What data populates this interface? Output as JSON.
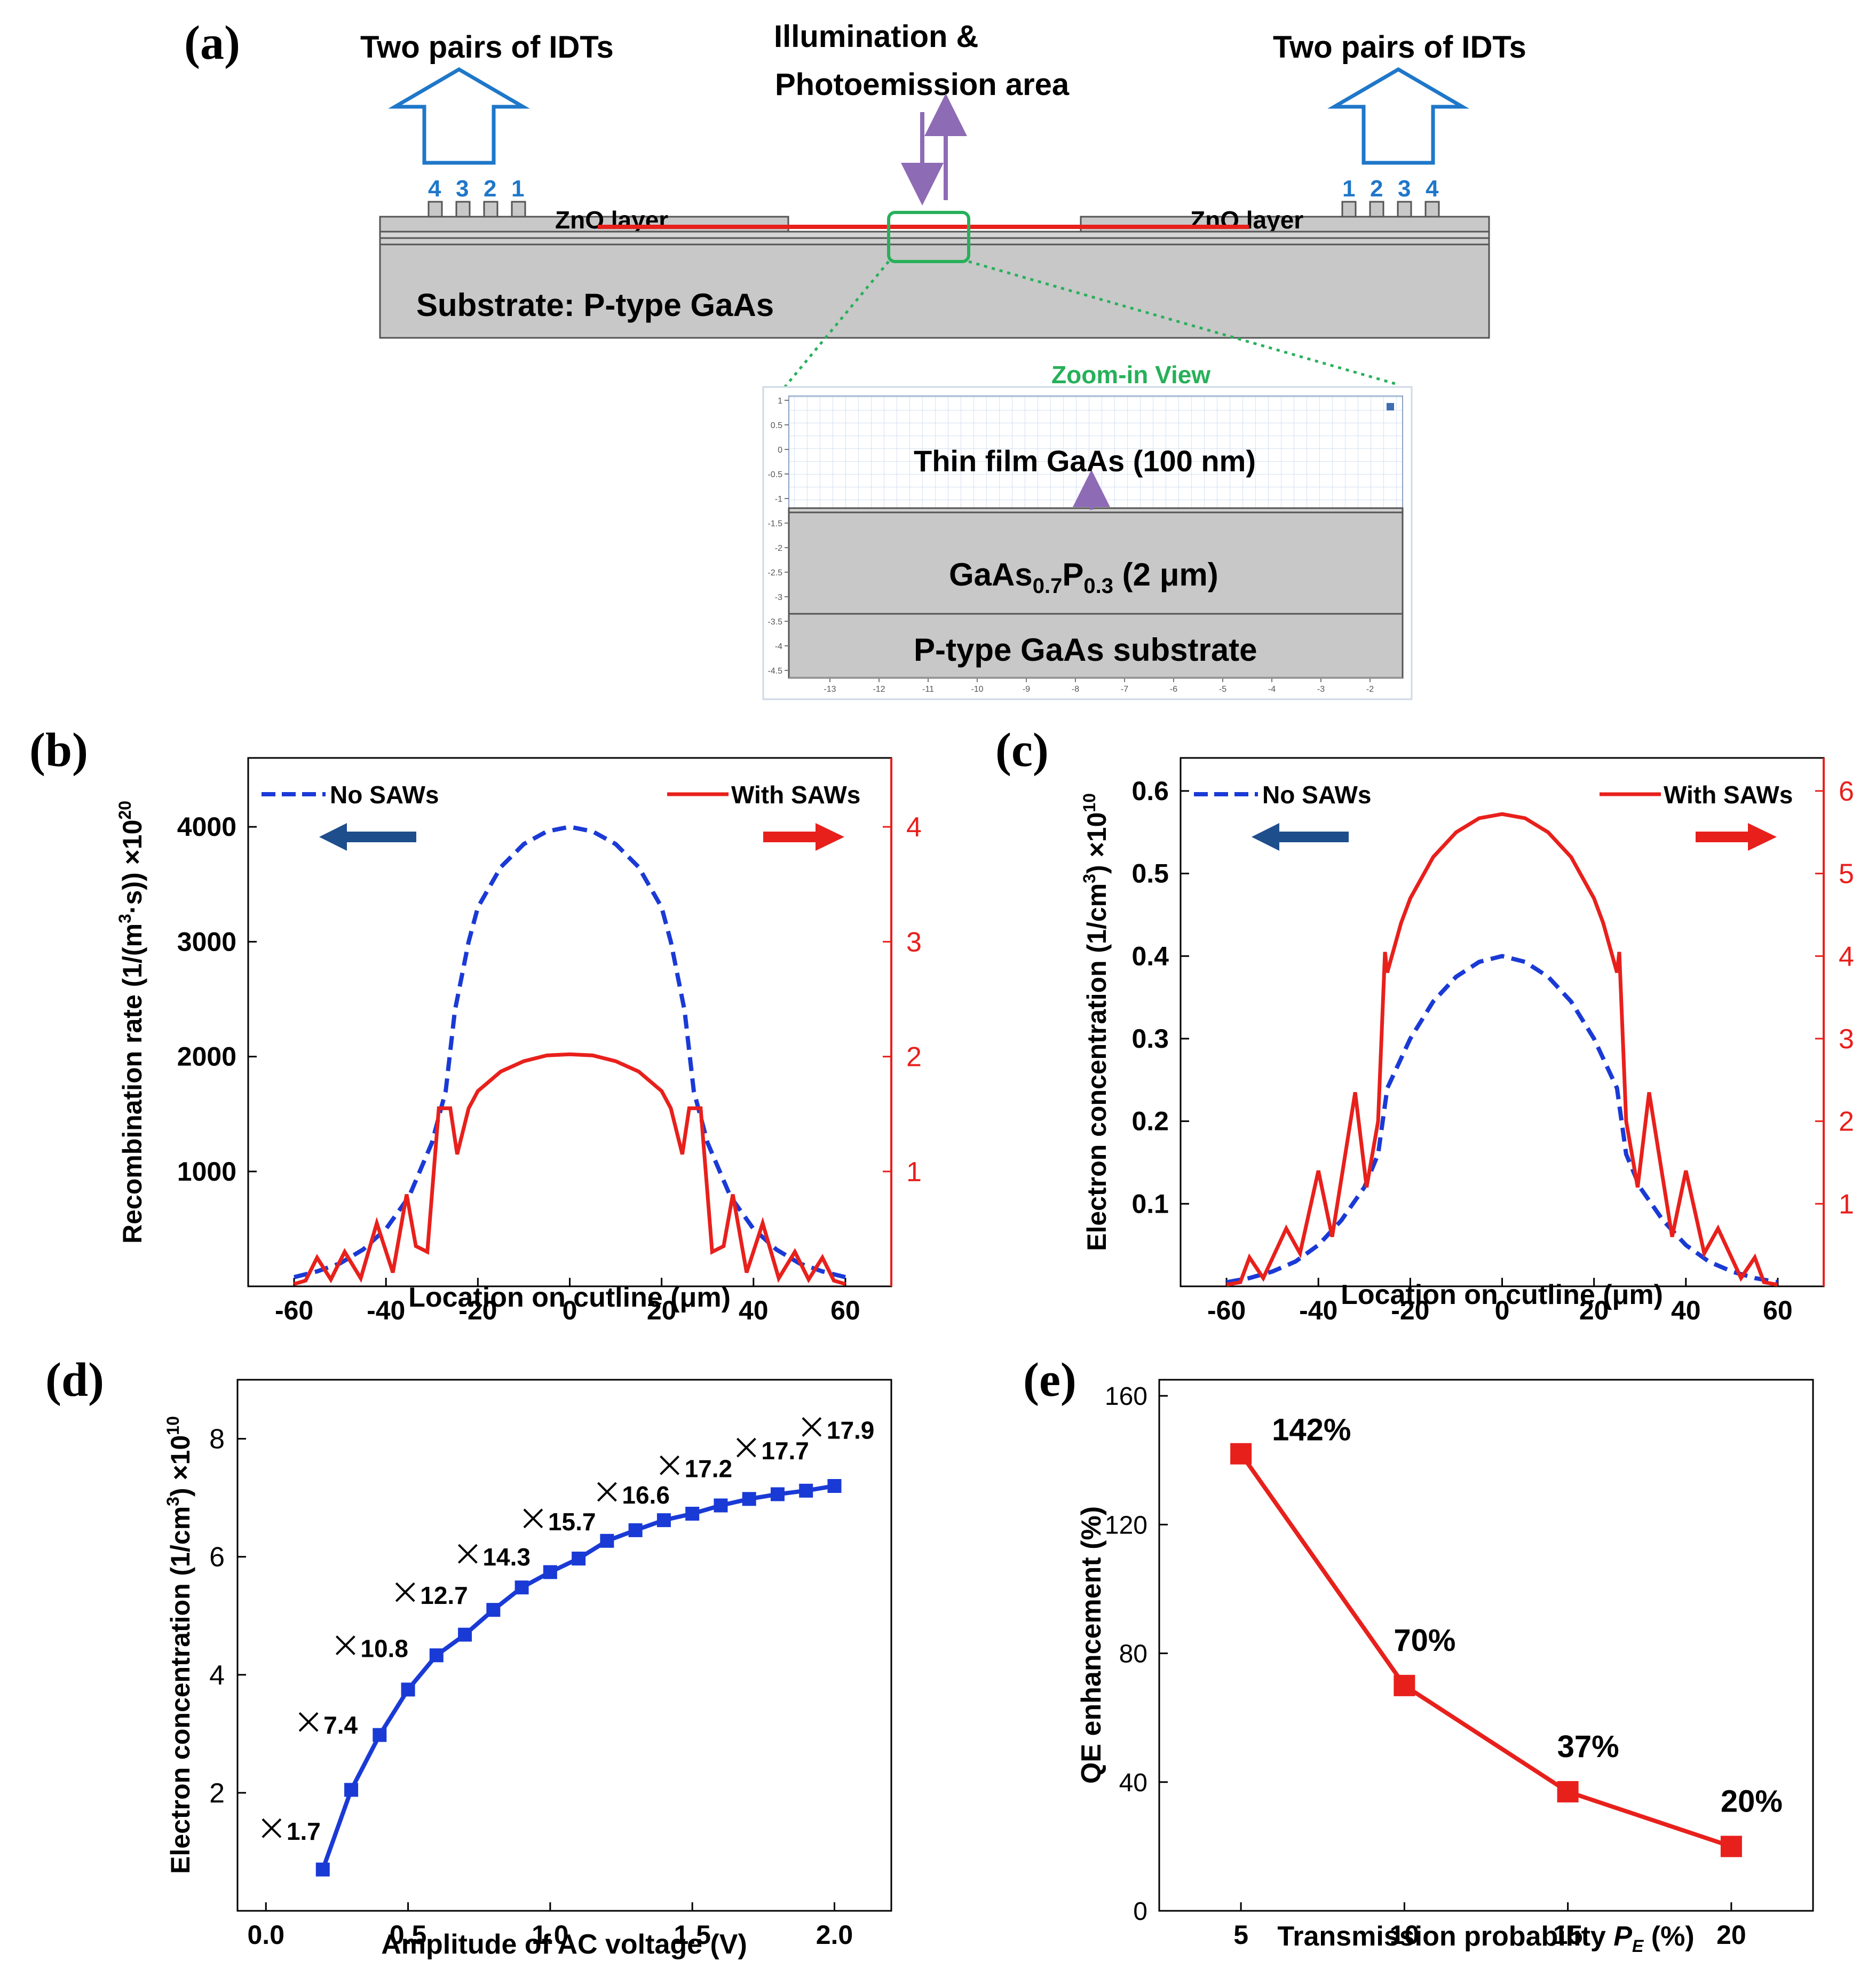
{
  "panel_a": {
    "label": "(a)",
    "idt_left": "Two pairs of IDTs",
    "idt_right": "Two pairs of IDTs",
    "illum_line1": "Illumination &",
    "illum_line2": "Photoemission area",
    "idt_nums_left": [
      "4",
      "3",
      "2",
      "1"
    ],
    "idt_nums_right": [
      "1",
      "2",
      "3",
      "4"
    ],
    "zno_left": "ZnO layer",
    "zno_right": "ZnO layer",
    "substrate": "Substrate: P-type GaAs",
    "zoom_title": "Zoom-in View",
    "layer1": "Thin film GaAs (100 nm)",
    "layer2_main": "GaAs",
    "layer2_sub1": "0.7",
    "layer2_mid": "P",
    "layer2_sub2": "0.3",
    "layer2_tail": " (2 μm)",
    "layer3": "P-type GaAs substrate",
    "zoom_yticks": [
      "1",
      "0.5",
      "0",
      "-0.5",
      "-1",
      "-1.5",
      "-2",
      "-2.5",
      "-3",
      "-3.5",
      "-4",
      "-4.5"
    ],
    "zoom_xticks": [
      "-13",
      "-12",
      "-11",
      "-10",
      "-9",
      "-8",
      "-7",
      "-6",
      "-5",
      "-4",
      "-3",
      "-2"
    ],
    "colors": {
      "idt_blue": "#1f77c9",
      "red_line": "#e8201c",
      "green": "#27b05a",
      "purple": "#8e6bb5"
    }
  },
  "chart_data": [
    {
      "id": "b",
      "panel_label": "(b)",
      "type": "line",
      "xlabel": "Location on cutline (μm)",
      "ylabel": "Recombination rate (1/(m³·s)) ×10²⁰",
      "ylabel_parts": {
        "pre": "Recombination rate (1/(m",
        "sup": "3",
        "post": "·s)) ×10",
        "exp": "20"
      },
      "xlim": [
        -70,
        70
      ],
      "ylim_left": [
        0,
        4600
      ],
      "ylim_right": [
        0,
        4.6
      ],
      "xticks": [
        -60,
        -40,
        -20,
        0,
        20,
        40,
        60
      ],
      "yticks_left": [
        1000,
        2000,
        3000,
        4000
      ],
      "yticks_right": [
        1,
        2,
        3,
        4
      ],
      "legend_left": "No SAWs",
      "legend_right": "With SAWs",
      "series": [
        {
          "name": "No SAWs",
          "axis": "left",
          "style": "dashed",
          "color": "#1a3ad6",
          "x": [
            -60,
            -55,
            -50,
            -45,
            -40,
            -35,
            -30,
            -27,
            -25,
            -22,
            -20,
            -15,
            -10,
            -5,
            0,
            5,
            10,
            15,
            20,
            22,
            25,
            27,
            30,
            35,
            40,
            45,
            50,
            55,
            60
          ],
          "y": [
            80,
            130,
            200,
            320,
            500,
            780,
            1250,
            1700,
            2400,
            3000,
            3300,
            3650,
            3850,
            3960,
            4000,
            3960,
            3850,
            3650,
            3300,
            3000,
            2400,
            1700,
            1250,
            780,
            500,
            320,
            200,
            130,
            80
          ]
        },
        {
          "name": "With SAWs",
          "axis": "right",
          "style": "solid",
          "color": "#e8201c",
          "x": [
            -60,
            -57.5,
            -55,
            -52,
            -49,
            -45.5,
            -42,
            -38.5,
            -35.5,
            -33.5,
            -31,
            -28.5,
            -26,
            -24.5,
            -22,
            -20,
            -15,
            -10,
            -5,
            0,
            5,
            10,
            15,
            20,
            22,
            24.5,
            26,
            28.5,
            31,
            33.5,
            35.5,
            38.5,
            42,
            45.5,
            49,
            52,
            55,
            57.5,
            60
          ],
          "y": [
            0.02,
            0.05,
            0.25,
            0.06,
            0.3,
            0.07,
            0.55,
            0.12,
            0.8,
            0.35,
            0.3,
            1.55,
            1.55,
            1.15,
            1.55,
            1.7,
            1.87,
            1.96,
            2.01,
            2.02,
            2.01,
            1.96,
            1.87,
            1.7,
            1.55,
            1.15,
            1.55,
            1.55,
            0.3,
            0.35,
            0.8,
            0.12,
            0.55,
            0.07,
            0.3,
            0.06,
            0.25,
            0.05,
            0.02
          ]
        }
      ]
    },
    {
      "id": "c",
      "panel_label": "(c)",
      "type": "line",
      "xlabel": "Location on cutline (μm)",
      "ylabel": "Electron concentration (1/cm³) ×10¹⁰",
      "ylabel_parts": {
        "pre": "Electron concentration (1/cm",
        "sup": "3",
        "post": ") ×10",
        "exp": "10"
      },
      "xlim": [
        -70,
        70
      ],
      "ylim_left": [
        0,
        0.64
      ],
      "ylim_right": [
        0,
        6.4
      ],
      "xticks": [
        -60,
        -40,
        -20,
        0,
        20,
        40,
        60
      ],
      "yticks_left": [
        0.1,
        0.2,
        0.3,
        0.4,
        0.5,
        0.6
      ],
      "yticks_right": [
        1,
        2,
        3,
        4,
        5,
        6
      ],
      "legend_left": "No SAWs",
      "legend_right": "With SAWs",
      "series": [
        {
          "name": "No SAWs",
          "axis": "left",
          "style": "dashed",
          "color": "#1a3ad6",
          "x": [
            -60,
            -55,
            -50,
            -45,
            -40,
            -35,
            -30,
            -27,
            -25,
            -20,
            -15,
            -10,
            -5,
            0,
            5,
            10,
            15,
            20,
            25,
            27,
            30,
            35,
            40,
            45,
            50,
            55,
            60
          ],
          "y": [
            0.005,
            0.01,
            0.018,
            0.03,
            0.05,
            0.08,
            0.12,
            0.16,
            0.24,
            0.3,
            0.345,
            0.375,
            0.393,
            0.4,
            0.393,
            0.375,
            0.345,
            0.3,
            0.24,
            0.16,
            0.12,
            0.08,
            0.05,
            0.03,
            0.018,
            0.01,
            0.005
          ]
        },
        {
          "name": "With SAWs",
          "axis": "right",
          "style": "solid",
          "color": "#e8201c",
          "x": [
            -60,
            -57,
            -55,
            -52,
            -47,
            -44,
            -40,
            -37,
            -32,
            -29.5,
            -27,
            -25.5,
            -25,
            -22,
            -20,
            -15,
            -10,
            -5,
            0,
            5,
            10,
            15,
            20,
            22,
            25,
            25.5,
            27,
            29.5,
            32,
            37,
            40,
            44,
            47,
            52,
            55,
            57,
            60
          ],
          "y": [
            0.02,
            0.05,
            0.35,
            0.1,
            0.7,
            0.4,
            1.4,
            0.6,
            2.35,
            1.2,
            2.0,
            4.05,
            3.8,
            4.4,
            4.7,
            5.2,
            5.5,
            5.67,
            5.72,
            5.67,
            5.5,
            5.2,
            4.7,
            4.4,
            3.8,
            4.05,
            2.0,
            1.2,
            2.35,
            0.6,
            1.4,
            0.4,
            0.7,
            0.1,
            0.35,
            0.05,
            0.02
          ]
        }
      ]
    },
    {
      "id": "d",
      "panel_label": "(d)",
      "type": "line",
      "xlabel": "Amplitude of AC voltage (V)",
      "ylabel": "Electron concentration (1/cm³) ×10¹⁰",
      "ylabel_parts": {
        "pre": "Electron concentration (1/cm",
        "sup": "3",
        "post": ") ×10",
        "exp": "10"
      },
      "xlim": [
        -0.1,
        2.2
      ],
      "ylim": [
        0,
        9
      ],
      "xticks": [
        "0.0",
        "0.5",
        "1.0",
        "1.5",
        "2.0"
      ],
      "xtick_values": [
        0,
        0.5,
        1.0,
        1.5,
        2.0
      ],
      "yticks": [
        2,
        4,
        6,
        8
      ],
      "series": [
        {
          "name": "Electron concentration",
          "color": "#1a3ad6",
          "marker": "square",
          "x": [
            0.2,
            0.3,
            0.4,
            0.5,
            0.6,
            0.7,
            0.8,
            0.9,
            1.0,
            1.1,
            1.2,
            1.3,
            1.4,
            1.5,
            1.6,
            1.7,
            1.8,
            1.9,
            2.0
          ],
          "y": [
            0.7,
            2.05,
            2.98,
            3.75,
            4.33,
            4.68,
            5.1,
            5.48,
            5.74,
            5.97,
            6.27,
            6.45,
            6.62,
            6.73,
            6.87,
            6.98,
            7.06,
            7.12,
            7.2
          ]
        }
      ],
      "annotations": {
        "labels": [
          "1.7",
          "7.4",
          "10.8",
          "12.7",
          "14.3",
          "15.7",
          "16.6",
          "17.2",
          "17.7",
          "17.9"
        ],
        "x": [
          0.02,
          0.15,
          0.28,
          0.49,
          0.71,
          0.94,
          1.2,
          1.42,
          1.69,
          1.92
        ],
        "y": [
          1.4,
          3.2,
          4.5,
          5.4,
          6.05,
          6.65,
          7.1,
          7.55,
          7.85,
          8.2
        ]
      }
    },
    {
      "id": "e",
      "panel_label": "(e)",
      "type": "line",
      "xlabel_pre": "Transmission probability ",
      "xlabel_var": "P",
      "xlabel_sub": "E",
      "xlabel_post": " (%)",
      "ylabel": "QE enhancement (%)",
      "xlim": [
        2.5,
        22.5
      ],
      "ylim": [
        0,
        165
      ],
      "xticks": [
        5,
        10,
        15,
        20
      ],
      "yticks": [
        0,
        40,
        80,
        120,
        160
      ],
      "series": [
        {
          "name": "QE enhancement",
          "color": "#e8201c",
          "marker": "square",
          "x": [
            5,
            10,
            15,
            20
          ],
          "y": [
            142,
            70,
            37,
            20
          ]
        }
      ],
      "data_labels": [
        "142%",
        "70%",
        "37%",
        "20%"
      ]
    }
  ]
}
